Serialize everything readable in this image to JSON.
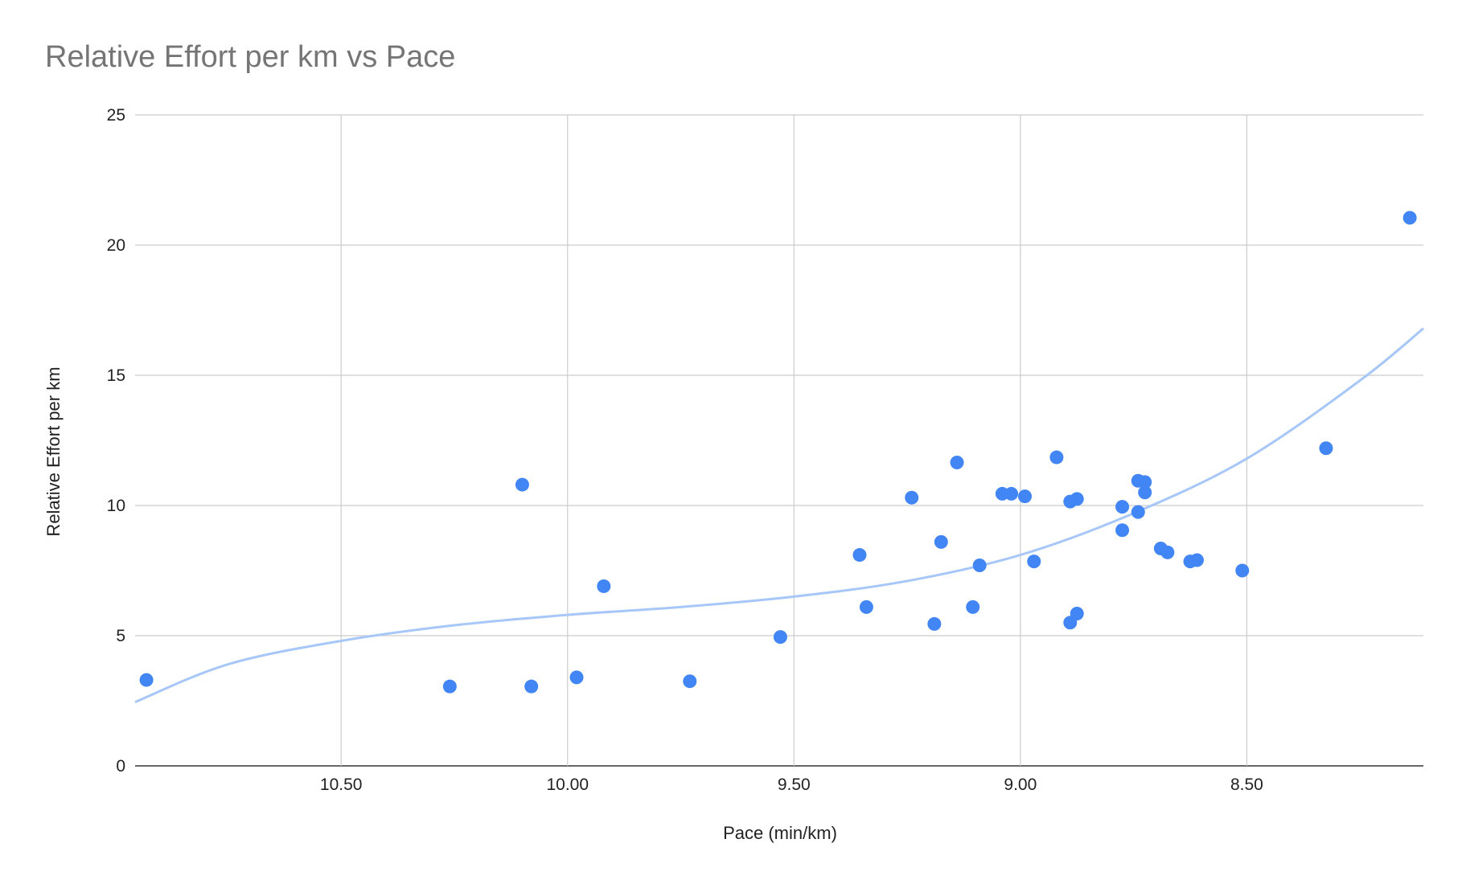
{
  "chart_data": {
    "type": "scatter",
    "title": "Relative Effort per km vs Pace",
    "xlabel": "Pace (min/km)",
    "ylabel": "Relative Effort per km",
    "x_reversed": true,
    "xlim": [
      10.955,
      8.11
    ],
    "ylim": [
      0,
      25
    ],
    "x_ticks": [
      10.5,
      10.0,
      9.5,
      9.0,
      8.5
    ],
    "x_tick_labels": [
      "10.50",
      "10.00",
      "9.50",
      "9.00",
      "8.50"
    ],
    "y_ticks": [
      0,
      5,
      10,
      15,
      20,
      25
    ],
    "y_tick_labels": [
      "0",
      "5",
      "10",
      "15",
      "20",
      "25"
    ],
    "grid": true,
    "legend": "none",
    "colors": {
      "points": "#4285f4",
      "trendline": "#a7c7f9",
      "grid": "#cccccc",
      "title": "#757575"
    },
    "points": [
      {
        "x": 10.93,
        "y": 3.3
      },
      {
        "x": 10.26,
        "y": 3.05
      },
      {
        "x": 10.1,
        "y": 10.8
      },
      {
        "x": 10.08,
        "y": 3.05
      },
      {
        "x": 9.98,
        "y": 3.4
      },
      {
        "x": 9.92,
        "y": 6.9
      },
      {
        "x": 9.73,
        "y": 3.25
      },
      {
        "x": 9.53,
        "y": 4.95
      },
      {
        "x": 9.355,
        "y": 8.1
      },
      {
        "x": 9.34,
        "y": 6.1
      },
      {
        "x": 9.24,
        "y": 10.3
      },
      {
        "x": 9.19,
        "y": 5.45
      },
      {
        "x": 9.175,
        "y": 8.6
      },
      {
        "x": 9.14,
        "y": 11.65
      },
      {
        "x": 9.105,
        "y": 6.1
      },
      {
        "x": 9.09,
        "y": 7.7
      },
      {
        "x": 9.04,
        "y": 10.45
      },
      {
        "x": 9.02,
        "y": 10.45
      },
      {
        "x": 8.99,
        "y": 10.35
      },
      {
        "x": 8.97,
        "y": 7.85
      },
      {
        "x": 8.92,
        "y": 11.85
      },
      {
        "x": 8.89,
        "y": 10.15
      },
      {
        "x": 8.89,
        "y": 5.5
      },
      {
        "x": 8.875,
        "y": 10.25
      },
      {
        "x": 8.875,
        "y": 5.85
      },
      {
        "x": 8.775,
        "y": 9.95
      },
      {
        "x": 8.775,
        "y": 9.05
      },
      {
        "x": 8.74,
        "y": 10.95
      },
      {
        "x": 8.74,
        "y": 9.75
      },
      {
        "x": 8.725,
        "y": 10.9
      },
      {
        "x": 8.725,
        "y": 10.5
      },
      {
        "x": 8.69,
        "y": 8.35
      },
      {
        "x": 8.675,
        "y": 8.2
      },
      {
        "x": 8.625,
        "y": 7.85
      },
      {
        "x": 8.61,
        "y": 7.9
      },
      {
        "x": 8.51,
        "y": 7.5
      },
      {
        "x": 8.325,
        "y": 12.2
      },
      {
        "x": 8.14,
        "y": 21.05
      }
    ],
    "trendline": {
      "x": [
        10.955,
        10.75,
        10.5,
        10.25,
        10.0,
        9.75,
        9.5,
        9.25,
        9.0,
        8.75,
        8.5,
        8.25,
        8.11
      ],
      "y": [
        2.45,
        3.9,
        4.8,
        5.4,
        5.8,
        6.1,
        6.5,
        7.1,
        8.1,
        9.7,
        11.8,
        14.8,
        16.8
      ]
    }
  }
}
